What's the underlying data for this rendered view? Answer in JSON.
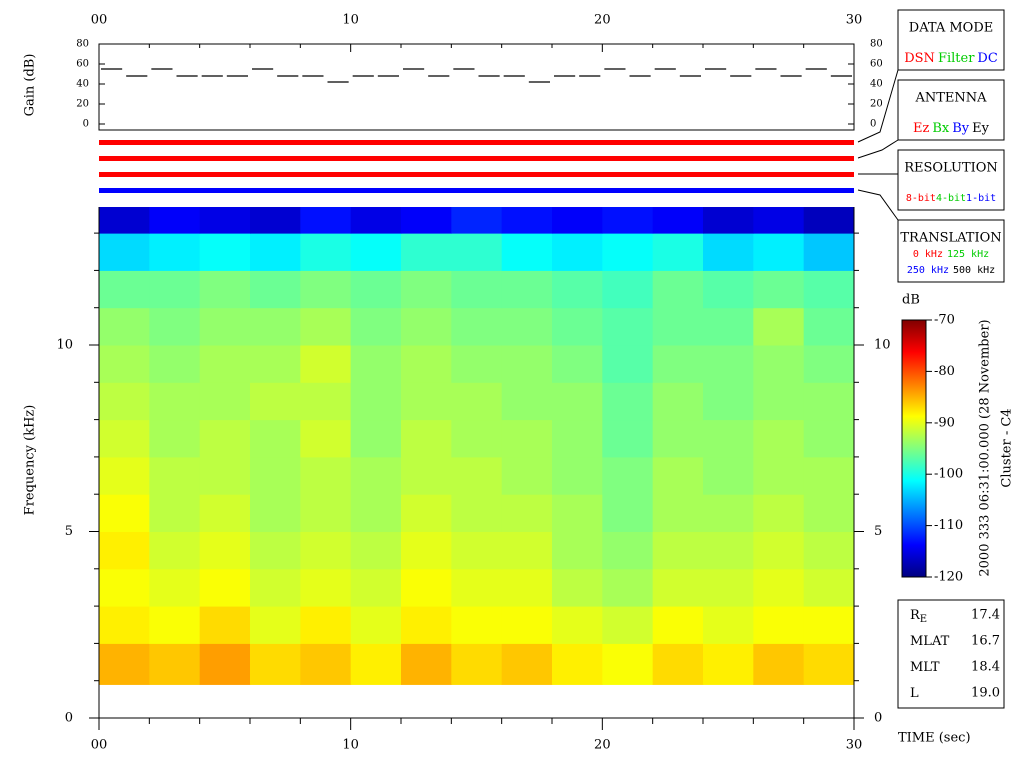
{
  "chart_data": [
    {
      "type": "step",
      "ylabel": "Gain (dB)",
      "xlim": [
        0,
        30
      ],
      "xticks": [
        {
          "value": 0,
          "label": "00"
        },
        10,
        20,
        30
      ],
      "xminorticks": [
        2,
        4,
        6,
        8,
        12,
        14,
        16,
        18,
        22,
        24,
        26,
        28
      ],
      "ylim": [
        0,
        80
      ],
      "yticks": [
        0,
        20,
        40,
        60,
        80
      ],
      "x": [
        0,
        1,
        2,
        3,
        4,
        5,
        6,
        7,
        8,
        9,
        10,
        11,
        12,
        13,
        14,
        15,
        16,
        17,
        18,
        19,
        20,
        21,
        22,
        23,
        24,
        25,
        26,
        27,
        28,
        29
      ],
      "values": [
        55,
        48,
        55,
        48,
        48,
        48,
        55,
        48,
        48,
        42,
        48,
        48,
        55,
        48,
        55,
        48,
        48,
        42,
        48,
        48,
        55,
        48,
        55,
        48,
        55,
        48,
        55,
        48,
        55,
        48
      ]
    },
    {
      "type": "status",
      "colors": [
        "#ff0000",
        "#ff0000",
        "#ff0000",
        "#0000ff"
      ]
    },
    {
      "type": "heatmap",
      "ylabel": "Frequency (kHz)",
      "xlabel": "TIME (sec)",
      "xlim": [
        0,
        30
      ],
      "xticks": [
        {
          "value": 0,
          "label": "00"
        },
        10,
        20,
        30
      ],
      "xminorticks": [
        2,
        4,
        6,
        8,
        12,
        14,
        16,
        18,
        22,
        24,
        26,
        28
      ],
      "ylim": [
        0,
        13.7
      ],
      "yticks": [
        0,
        5,
        10
      ],
      "yminorticks": [
        1,
        2,
        3,
        4,
        6,
        7,
        8,
        9,
        11,
        12,
        13
      ],
      "x_bins": [
        0,
        2,
        4,
        6,
        8,
        10,
        12,
        14,
        16,
        18,
        20,
        22,
        24,
        26,
        28,
        30
      ],
      "y_bins": [
        0.9,
        2,
        3,
        4,
        5,
        6,
        7,
        8,
        9,
        10,
        11,
        12,
        13,
        13.7
      ],
      "z": [
        [
          -85,
          -86,
          -84,
          -87,
          -86,
          -88,
          -85,
          -87,
          -86,
          -88,
          -89,
          -87,
          -88,
          -86,
          -87
        ],
        [
          -88,
          -89,
          -87,
          -90,
          -88,
          -90,
          -88,
          -89,
          -89,
          -90,
          -91,
          -89,
          -90,
          -89,
          -89
        ],
        [
          -89,
          -90,
          -89,
          -91,
          -90,
          -91,
          -89,
          -90,
          -90,
          -92,
          -93,
          -91,
          -91,
          -90,
          -91
        ],
        [
          -88,
          -91,
          -90,
          -92,
          -91,
          -92,
          -90,
          -91,
          -91,
          -93,
          -94,
          -92,
          -92,
          -91,
          -92
        ],
        [
          -89,
          -92,
          -91,
          -93,
          -92,
          -93,
          -91,
          -92,
          -92,
          -93,
          -95,
          -93,
          -93,
          -92,
          -93
        ],
        [
          -90,
          -92,
          -92,
          -93,
          -92,
          -93,
          -92,
          -92,
          -93,
          -94,
          -95,
          -93,
          -94,
          -93,
          -93
        ],
        [
          -91,
          -93,
          -92,
          -93,
          -91,
          -94,
          -92,
          -93,
          -93,
          -94,
          -96,
          -94,
          -94,
          -93,
          -94
        ],
        [
          -92,
          -93,
          -93,
          -92,
          -92,
          -94,
          -93,
          -93,
          -94,
          -94,
          -96,
          -94,
          -95,
          -94,
          -94
        ],
        [
          -93,
          -94,
          -93,
          -93,
          -91,
          -94,
          -93,
          -94,
          -94,
          -95,
          -97,
          -95,
          -95,
          -94,
          -95
        ],
        [
          -94,
          -95,
          -94,
          -94,
          -93,
          -95,
          -94,
          -95,
          -95,
          -96,
          -97,
          -96,
          -96,
          -93,
          -96
        ],
        [
          -96,
          -96,
          -95,
          -96,
          -95,
          -96,
          -95,
          -96,
          -96,
          -97,
          -98,
          -96,
          -97,
          -96,
          -97
        ],
        [
          -103,
          -102,
          -101,
          -102,
          -100,
          -101,
          -99,
          -99,
          -101,
          -102,
          -101,
          -100,
          -103,
          -102,
          -104
        ],
        [
          -116,
          -114,
          -115,
          -116,
          -113,
          -115,
          -114,
          -112,
          -113,
          -114,
          -113,
          -114,
          -116,
          -115,
          -117
        ]
      ],
      "colorbar": {
        "label": "dB",
        "lim": [
          -120,
          -70
        ],
        "ticks": [
          -70,
          -80,
          -90,
          -100,
          -110,
          -120
        ]
      }
    }
  ],
  "legend_boxes": [
    {
      "title": "DATA MODE",
      "items": [
        {
          "text": "DSN",
          "color": "#ff0000"
        },
        {
          "text": "Filter",
          "color": "#00cc00"
        },
        {
          "text": "DC",
          "color": "#0000ff"
        }
      ]
    },
    {
      "title": "ANTENNA",
      "items": [
        {
          "text": "Ez",
          "color": "#ff0000"
        },
        {
          "text": "Bx",
          "color": "#00cc00"
        },
        {
          "text": "By",
          "color": "#0000ff"
        },
        {
          "text": "Ey",
          "color": "#000000"
        }
      ]
    },
    {
      "title": "RESOLUTION",
      "items": [
        {
          "text": "8-bit",
          "color": "#ff0000"
        },
        {
          "text": "4-bit",
          "color": "#00cc00"
        },
        {
          "text": "1-bit",
          "color": "#0000ff"
        }
      ]
    },
    {
      "title": "TRANSLATION",
      "items": [
        {
          "text": "0 kHz",
          "color": "#ff0000"
        },
        {
          "text": "125 kHz",
          "color": "#00cc00"
        },
        {
          "text": "250 kHz",
          "color": "#0000ff"
        },
        {
          "text": "500 kHz",
          "color": "#000000"
        }
      ]
    }
  ],
  "caption": [
    "2000 333 06:31:00.000 (28 November)",
    "Cluster - C4"
  ],
  "info": [
    {
      "label": "R",
      "sub": "E",
      "value": "17.4"
    },
    {
      "label": "MLAT",
      "value": "16.7"
    },
    {
      "label": "MLT",
      "value": "18.4"
    },
    {
      "label": "L",
      "value": "19.0"
    }
  ]
}
